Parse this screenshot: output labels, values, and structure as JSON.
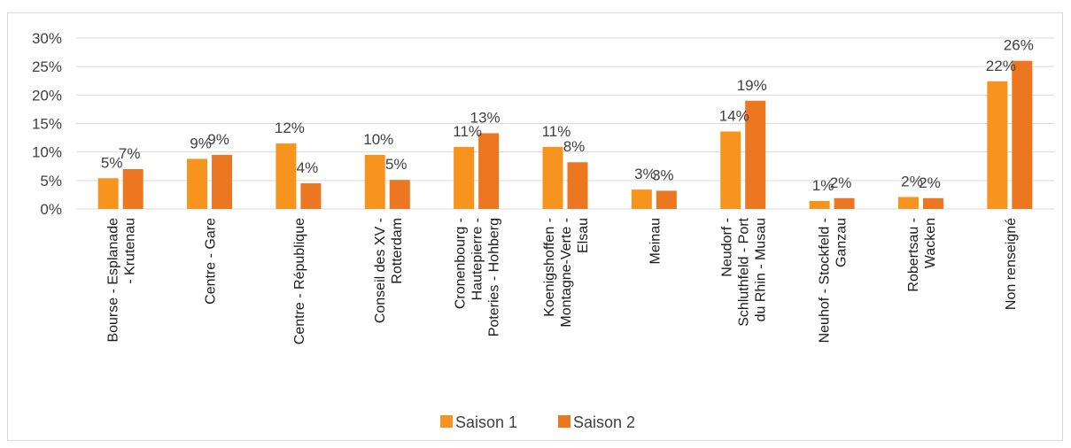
{
  "chart_data": {
    "type": "bar",
    "categories": [
      [
        "Bourse - Esplanade",
        "- Krutenau"
      ],
      [
        "Centre - Gare"
      ],
      [
        "Centre - République"
      ],
      [
        "Conseil des XV -",
        "Rotterdam"
      ],
      [
        "Cronenbourg -",
        "Hautepierre -",
        "Poteries - Hohberg"
      ],
      [
        "Koenigshoffen -",
        "Montagne-Verte -",
        "Elsau"
      ],
      [
        "Meinau"
      ],
      [
        "Neudorf -",
        "Schluthfeld - Port",
        "du Rhin - Musau"
      ],
      [
        "Neuhof - Stockfeld -",
        "Ganzau"
      ],
      [
        "Robertsau -",
        "Wacken"
      ],
      [
        "Non renseigné"
      ]
    ],
    "series": [
      {
        "name": "Saison 1",
        "color": "#f7941d",
        "values": [
          5.4,
          8.8,
          11.5,
          9.5,
          10.9,
          10.9,
          3.4,
          13.6,
          1.4,
          2.1,
          22.4
        ],
        "labels": [
          "5%",
          "9%",
          "12%",
          "10%",
          "11%",
          "11%",
          "3%",
          "14%",
          "1%",
          "2%",
          "22%"
        ]
      },
      {
        "name": "Saison 2",
        "color": "#ed7620",
        "values": [
          7.0,
          9.5,
          4.5,
          5.1,
          13.3,
          8.2,
          3.2,
          19.0,
          1.9,
          1.9,
          26.0
        ],
        "labels": [
          "7%",
          "9%",
          "4%",
          "5%",
          "13%",
          "8%",
          "3%",
          "19%",
          "2%",
          "2%",
          "26%"
        ]
      }
    ],
    "y_ticks": [
      "0%",
      "5%",
      "10%",
      "15%",
      "20%",
      "25%",
      "30%"
    ],
    "ylim": [
      0,
      30
    ],
    "ylabel": "",
    "xlabel": "",
    "title": "",
    "grid": true,
    "legend": "bottom"
  }
}
